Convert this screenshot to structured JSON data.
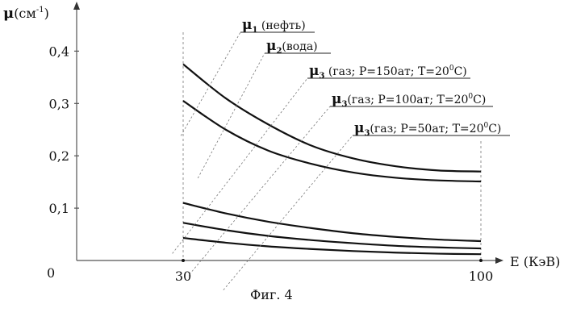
{
  "chart_data": {
    "type": "line",
    "title": "",
    "caption": "Фиг. 4",
    "ylabel": {
      "symbol": "μ",
      "unit": "(см",
      "exp": "-1",
      "close": ")"
    },
    "xlabel": "E (КэВ)",
    "origin_label": "0",
    "xlim": [
      30,
      100
    ],
    "ylim": [
      0,
      0.45
    ],
    "x_ticks": [
      "30",
      "100"
    ],
    "y_ticks": [
      "0,1",
      "0,2",
      "0,3",
      "0,4"
    ],
    "grid": false,
    "series": [
      {
        "label": {
          "sym": "μ",
          "sub": "1",
          "text": " (нефть)"
        },
        "x": [
          30,
          40,
          50,
          60,
          70,
          80,
          90,
          100
        ],
        "y": [
          0.375,
          0.31,
          0.26,
          0.22,
          0.195,
          0.18,
          0.172,
          0.17
        ]
      },
      {
        "label": {
          "sym": "μ",
          "sub": "2",
          "text": "(вода)"
        },
        "x": [
          30,
          40,
          50,
          60,
          70,
          80,
          90,
          100
        ],
        "y": [
          0.305,
          0.25,
          0.21,
          0.185,
          0.168,
          0.158,
          0.153,
          0.151
        ]
      },
      {
        "label": {
          "sym": "μ",
          "sub": "3",
          "text": " (газ; P=150ат; T=20",
          "sup": "0",
          "tail": "C)"
        },
        "x": [
          30,
          40,
          50,
          60,
          70,
          80,
          90,
          100
        ],
        "y": [
          0.11,
          0.09,
          0.074,
          0.062,
          0.052,
          0.045,
          0.04,
          0.037
        ]
      },
      {
        "label": {
          "sym": "μ",
          "sub": "3",
          "text": "(газ; P=100ат; T=20",
          "sup": "0",
          "tail": "C)"
        },
        "x": [
          30,
          40,
          50,
          60,
          70,
          80,
          90,
          100
        ],
        "y": [
          0.072,
          0.058,
          0.047,
          0.039,
          0.033,
          0.028,
          0.025,
          0.023
        ]
      },
      {
        "label": {
          "sym": "μ",
          "sub": "3",
          "text": "(газ; P=50ат; T=20",
          "sup": "0",
          "tail": "C)"
        },
        "x": [
          30,
          40,
          50,
          60,
          70,
          80,
          90,
          100
        ],
        "y": [
          0.043,
          0.034,
          0.027,
          0.022,
          0.018,
          0.015,
          0.013,
          0.012
        ]
      }
    ]
  }
}
